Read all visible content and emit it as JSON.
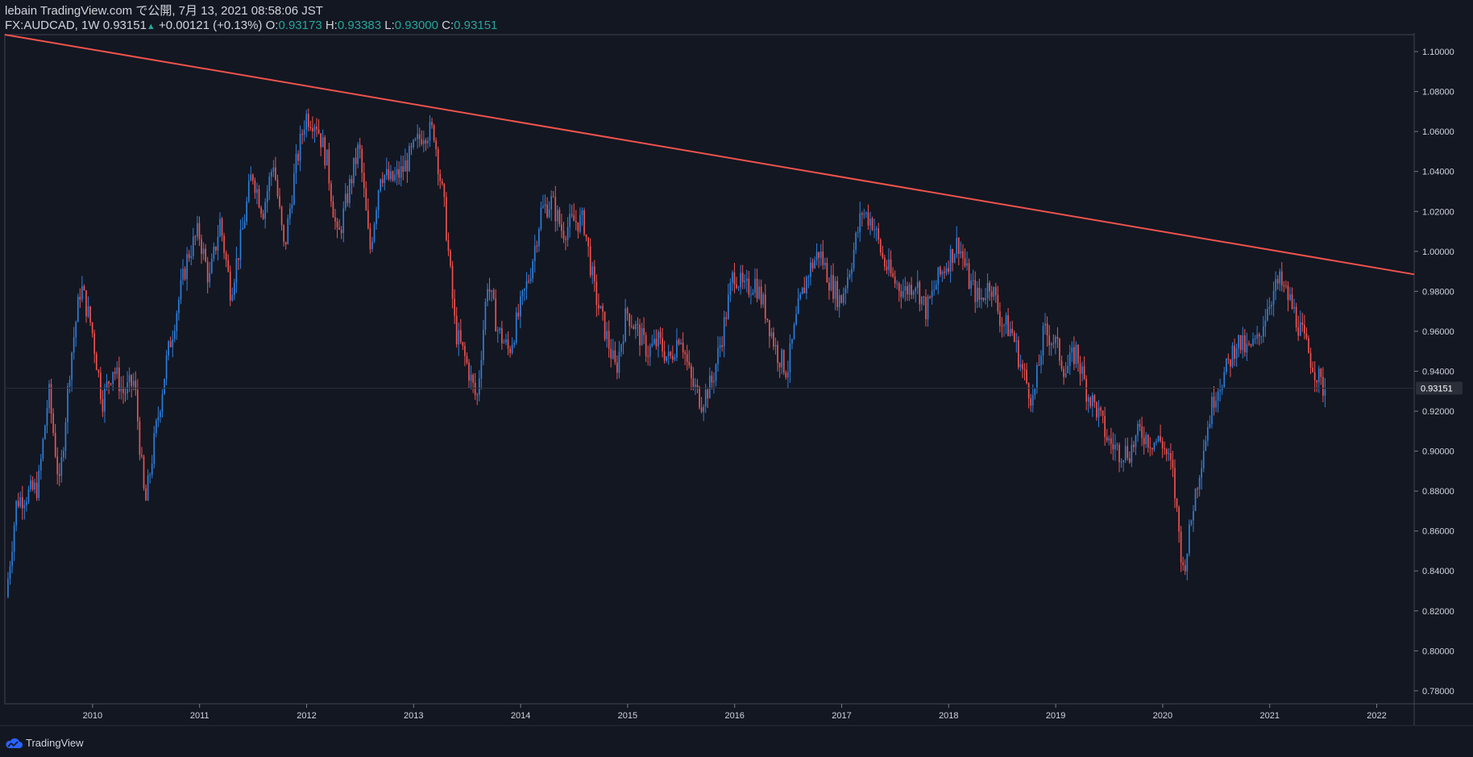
{
  "header": {
    "published": "lebain TradingView.com で公開, 7月 13, 2021 08:58:06 JST",
    "symbol": "FX:AUDCAD, 1W",
    "last": "0.93151",
    "change": "+0.00121 (+0.13%)",
    "o_label": "O:",
    "o_value": "0.93173",
    "h_label": "H:",
    "h_value": "0.93383",
    "l_label": "L:",
    "l_value": "0.93000",
    "c_label": "C:",
    "c_value": "0.93151"
  },
  "brand": {
    "name": "TradingView",
    "icon": "tradingview-cloud-icon"
  },
  "colors": {
    "background": "#131722",
    "up": "#2f7fdb",
    "down": "#ef5350",
    "trendline": "#f0534d",
    "axis_text": "#d1d4dc",
    "price_tag_bg": "#2a2e39"
  },
  "chart_data": {
    "type": "candlestick",
    "symbol": "FX:AUDCAD",
    "interval": "1W",
    "x_ticks": [
      "2010",
      "2011",
      "2012",
      "2013",
      "2014",
      "2015",
      "2016",
      "2017",
      "2018",
      "2019",
      "2020",
      "2021",
      "2022"
    ],
    "y_ticks": [
      "1.10000",
      "1.08000",
      "1.06000",
      "1.04000",
      "1.02000",
      "1.00000",
      "0.98000",
      "0.96000",
      "0.94000",
      "0.92000",
      "0.90000",
      "0.88000",
      "0.86000",
      "0.84000",
      "0.82000",
      "0.80000",
      "0.78000"
    ],
    "ylim": [
      0.7735,
      1.1085
    ],
    "xlim": [
      2009.18,
      2022.35
    ],
    "last_price": "0.93151",
    "price_path": [
      [
        2009.2,
        0.827
      ],
      [
        2009.3,
        0.875
      ],
      [
        2009.5,
        0.882
      ],
      [
        2009.6,
        0.93
      ],
      [
        2009.7,
        0.882
      ],
      [
        2009.8,
        0.944
      ],
      [
        2009.9,
        0.983
      ],
      [
        2010.0,
        0.962
      ],
      [
        2010.1,
        0.925
      ],
      [
        2010.2,
        0.942
      ],
      [
        2010.3,
        0.929
      ],
      [
        2010.4,
        0.935
      ],
      [
        2010.5,
        0.872
      ],
      [
        2010.6,
        0.91
      ],
      [
        2010.7,
        0.945
      ],
      [
        2010.8,
        0.972
      ],
      [
        2010.9,
        0.998
      ],
      [
        2011.0,
        1.01
      ],
      [
        2011.1,
        0.985
      ],
      [
        2011.2,
        1.015
      ],
      [
        2011.3,
        0.98
      ],
      [
        2011.4,
        1.007
      ],
      [
        2011.5,
        1.04
      ],
      [
        2011.6,
        1.02
      ],
      [
        2011.7,
        1.045
      ],
      [
        2011.8,
        1.0
      ],
      [
        2011.9,
        1.04
      ],
      [
        2012.0,
        1.068
      ],
      [
        2012.1,
        1.065
      ],
      [
        2012.2,
        1.045
      ],
      [
        2012.3,
        1.005
      ],
      [
        2012.4,
        1.03
      ],
      [
        2012.5,
        1.053
      ],
      [
        2012.6,
        1.0
      ],
      [
        2012.7,
        1.04
      ],
      [
        2012.8,
        1.035
      ],
      [
        2012.9,
        1.04
      ],
      [
        2013.0,
        1.05
      ],
      [
        2013.1,
        1.06
      ],
      [
        2013.2,
        1.06
      ],
      [
        2013.3,
        1.02
      ],
      [
        2013.4,
        0.96
      ],
      [
        2013.5,
        0.945
      ],
      [
        2013.6,
        0.925
      ],
      [
        2013.7,
        0.985
      ],
      [
        2013.8,
        0.96
      ],
      [
        2013.9,
        0.95
      ],
      [
        2014.0,
        0.97
      ],
      [
        2014.1,
        0.99
      ],
      [
        2014.2,
        1.02
      ],
      [
        2014.3,
        1.025
      ],
      [
        2014.4,
        1.01
      ],
      [
        2014.5,
        1.015
      ],
      [
        2014.6,
        1.015
      ],
      [
        2014.7,
        0.98
      ],
      [
        2014.8,
        0.96
      ],
      [
        2014.9,
        0.94
      ],
      [
        2015.0,
        0.97
      ],
      [
        2015.1,
        0.96
      ],
      [
        2015.2,
        0.95
      ],
      [
        2015.3,
        0.955
      ],
      [
        2015.4,
        0.945
      ],
      [
        2015.5,
        0.96
      ],
      [
        2015.6,
        0.935
      ],
      [
        2015.7,
        0.925
      ],
      [
        2015.8,
        0.935
      ],
      [
        2015.9,
        0.96
      ],
      [
        2016.0,
        0.99
      ],
      [
        2016.1,
        0.98
      ],
      [
        2016.2,
        0.985
      ],
      [
        2016.3,
        0.97
      ],
      [
        2016.4,
        0.95
      ],
      [
        2016.5,
        0.94
      ],
      [
        2016.6,
        0.97
      ],
      [
        2016.7,
        0.99
      ],
      [
        2016.8,
        1.0
      ],
      [
        2016.9,
        0.985
      ],
      [
        2017.0,
        0.975
      ],
      [
        2017.1,
        0.995
      ],
      [
        2017.2,
        1.02
      ],
      [
        2017.3,
        1.015
      ],
      [
        2017.4,
        0.995
      ],
      [
        2017.5,
        0.985
      ],
      [
        2017.6,
        0.98
      ],
      [
        2017.7,
        0.985
      ],
      [
        2017.8,
        0.97
      ],
      [
        2017.9,
        0.985
      ],
      [
        2018.0,
        0.995
      ],
      [
        2018.1,
        1.005
      ],
      [
        2018.2,
        0.985
      ],
      [
        2018.3,
        0.975
      ],
      [
        2018.4,
        0.985
      ],
      [
        2018.5,
        0.965
      ],
      [
        2018.6,
        0.96
      ],
      [
        2018.7,
        0.94
      ],
      [
        2018.8,
        0.925
      ],
      [
        2018.9,
        0.96
      ],
      [
        2019.0,
        0.955
      ],
      [
        2019.1,
        0.94
      ],
      [
        2019.2,
        0.95
      ],
      [
        2019.3,
        0.93
      ],
      [
        2019.4,
        0.92
      ],
      [
        2019.5,
        0.905
      ],
      [
        2019.6,
        0.9
      ],
      [
        2019.7,
        0.9
      ],
      [
        2019.8,
        0.91
      ],
      [
        2019.9,
        0.905
      ],
      [
        2020.0,
        0.905
      ],
      [
        2020.1,
        0.89
      ],
      [
        2020.2,
        0.84
      ],
      [
        2020.25,
        0.855
      ],
      [
        2020.3,
        0.875
      ],
      [
        2020.4,
        0.905
      ],
      [
        2020.5,
        0.93
      ],
      [
        2020.6,
        0.94
      ],
      [
        2020.7,
        0.955
      ],
      [
        2020.8,
        0.95
      ],
      [
        2020.9,
        0.955
      ],
      [
        2021.0,
        0.975
      ],
      [
        2021.1,
        0.985
      ],
      [
        2021.2,
        0.975
      ],
      [
        2021.3,
        0.96
      ],
      [
        2021.4,
        0.945
      ],
      [
        2021.5,
        0.932
      ],
      [
        2021.52,
        0.9315
      ]
    ],
    "annotations": [
      {
        "type": "trendline",
        "from": [
          2009.18,
          1.1085
        ],
        "to": [
          2022.35,
          0.9885
        ]
      }
    ]
  }
}
